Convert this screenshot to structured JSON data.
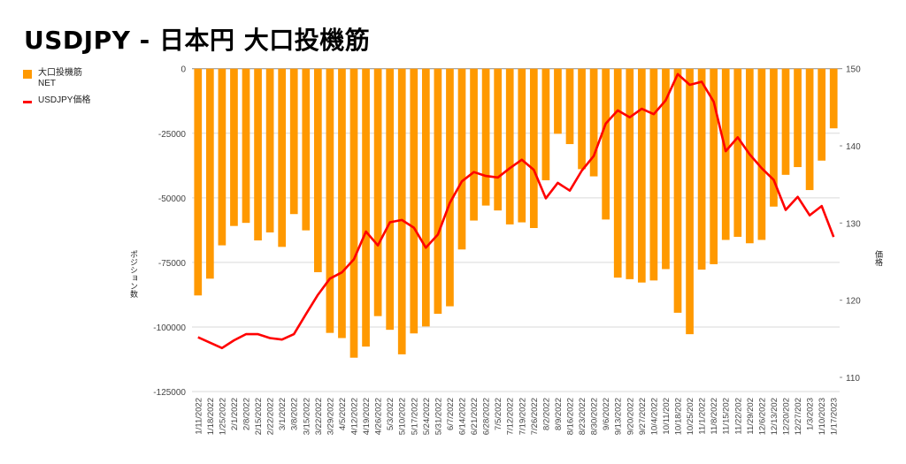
{
  "colors": {
    "bar": "#ff9900",
    "line": "#ff0000",
    "grid": "#d9d9d9",
    "text": "#444444"
  },
  "chart_data": {
    "type": "bar+line",
    "title": "USDJPY - 日本円 大口投機筋",
    "legend": {
      "placement": "left",
      "entries": [
        "大口投機筋",
        "NET",
        "USDJPY価格"
      ]
    },
    "ylabel_left": "ポジション数",
    "ylabel_right": "価格",
    "ylim_left": [
      -125000,
      0
    ],
    "yticks_left": [
      "0",
      "-25000",
      "-50000",
      "-75000",
      "-100000",
      "-125000"
    ],
    "ylim_right": [
      110,
      150
    ],
    "yticks_right": [
      "150",
      "140",
      "130",
      "120",
      "110"
    ],
    "grid": true,
    "categories": [
      "1/11/2022",
      "1/18/2022",
      "1/25/2022",
      "2/1/2022",
      "2/8/2022",
      "2/15/2022",
      "2/22/2022",
      "3/1/2022",
      "3/8/2022",
      "3/15/2022",
      "3/22/2022",
      "3/29/2022",
      "4/5/2022",
      "4/12/2022",
      "4/19/2022",
      "4/26/2022",
      "5/3/2022",
      "5/10/2022",
      "5/17/2022",
      "5/24/2022",
      "5/31/2022",
      "6/7/2022",
      "6/14/2022",
      "6/21/2022",
      "6/28/2022",
      "7/5/2022",
      "7/12/2022",
      "7/19/2022",
      "7/26/2022",
      "8/2/2022",
      "8/9/2022",
      "8/16/2022",
      "8/23/2022",
      "8/30/2022",
      "9/6/2022",
      "9/13/2022",
      "9/20/2022",
      "9/27/2022",
      "10/4/2022",
      "10/11/202",
      "10/18/202",
      "10/25/202",
      "11/1/2022",
      "11/8/2022",
      "11/15/202",
      "11/22/202",
      "11/29/202",
      "12/6/2022",
      "12/13/202",
      "12/20/202",
      "12/27/202",
      "1/3/2023",
      "1/10/2023",
      "1/17/2023"
    ],
    "series": [
      {
        "name": "大口投機筋 NET",
        "type": "bar",
        "axis": "left",
        "values": [
          -87800,
          -81300,
          -68400,
          -60900,
          -59700,
          -66500,
          -63400,
          -69000,
          -56300,
          -62600,
          -78800,
          -102300,
          -104300,
          -111900,
          -107600,
          -95800,
          -101100,
          -110600,
          -102500,
          -99800,
          -94900,
          -92000,
          -70000,
          -58800,
          -53000,
          -54900,
          -60300,
          -59500,
          -61700,
          -43200,
          -25200,
          -29200,
          -38900,
          -41700,
          -58400,
          -80900,
          -81500,
          -82800,
          -82000,
          -77600,
          -94500,
          -102800,
          -77800,
          -75700,
          -66300,
          -65100,
          -67600,
          -66300,
          -53400,
          -41100,
          -38100,
          -47000,
          -35600,
          -23100
        ]
      },
      {
        "name": "USDJPY価格",
        "type": "line",
        "axis": "right",
        "values": [
          115.2,
          114.5,
          113.8,
          114.8,
          115.6,
          115.6,
          115.1,
          114.9,
          115.6,
          118.2,
          120.7,
          122.8,
          123.6,
          125.3,
          128.9,
          127.1,
          130.1,
          130.4,
          129.4,
          126.8,
          128.5,
          132.6,
          135.4,
          136.6,
          136.1,
          135.9,
          137.1,
          138.2,
          136.9,
          133.2,
          135.2,
          134.2,
          136.8,
          138.7,
          142.9,
          144.6,
          143.7,
          144.8,
          144.1,
          145.9,
          149.3,
          147.9,
          148.3,
          145.7,
          139.3,
          141.1,
          138.9,
          137.1,
          135.6,
          131.7,
          133.4,
          131.0,
          132.2,
          128.2
        ]
      }
    ]
  }
}
